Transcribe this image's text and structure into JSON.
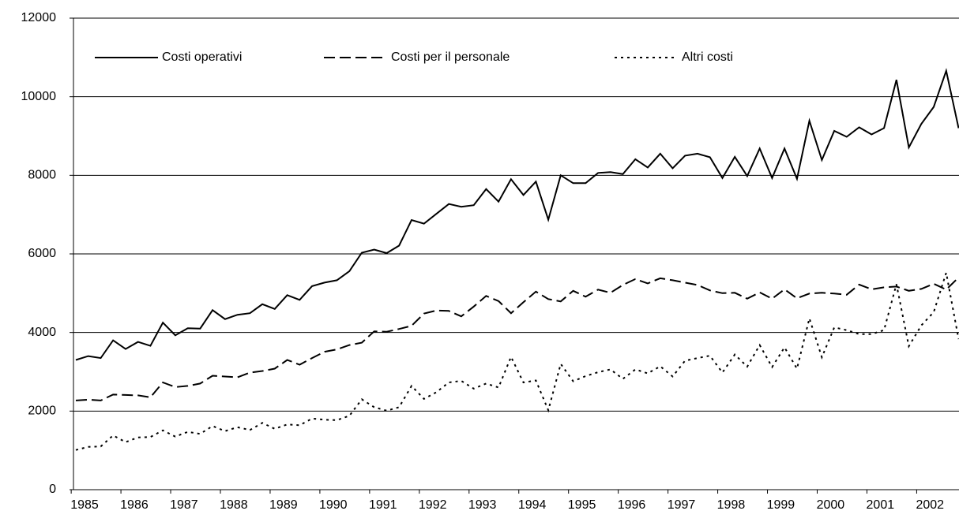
{
  "chart_data": {
    "type": "line",
    "categories": [
      "1985",
      null,
      null,
      null,
      "1986",
      null,
      null,
      null,
      "1987",
      null,
      null,
      null,
      "1988",
      null,
      null,
      null,
      "1989",
      null,
      null,
      null,
      "1990",
      null,
      null,
      null,
      "1991",
      null,
      null,
      null,
      "1992",
      null,
      null,
      null,
      "1993",
      null,
      null,
      null,
      "1994",
      null,
      null,
      null,
      "1995",
      null,
      null,
      null,
      "1996",
      null,
      null,
      null,
      "1997",
      null,
      null,
      null,
      "1998",
      null,
      null,
      null,
      "1999",
      null,
      null,
      null,
      "2000",
      null,
      null,
      null,
      "2001",
      null,
      null,
      null,
      "2002",
      null,
      null,
      null
    ],
    "series": [
      {
        "name": "Costi operativi",
        "color": "#000000",
        "line_style": "solid",
        "values": [
          3300,
          3400,
          3350,
          3800,
          3580,
          3760,
          3660,
          4250,
          3930,
          4110,
          4100,
          4570,
          4340,
          4450,
          4490,
          4720,
          4600,
          4950,
          4830,
          5180,
          5270,
          5330,
          5560,
          6030,
          6110,
          6020,
          6210,
          6860,
          6770,
          7020,
          7270,
          7200,
          7240,
          7650,
          7330,
          7900,
          7500,
          7840,
          6870,
          8000,
          7800,
          7800,
          8060,
          8080,
          8030,
          8410,
          8200,
          8550,
          8180,
          8500,
          8550,
          8460,
          7930,
          8470,
          7980,
          8680,
          7930,
          8680,
          7910,
          9390,
          8390,
          9130,
          8980,
          9220,
          9040,
          9200,
          10430,
          8710,
          9310,
          9740,
          10660,
          9200
        ]
      },
      {
        "name": "Costi per il personale",
        "color": "#000000",
        "line_style": "dashed",
        "values": [
          2270,
          2290,
          2270,
          2420,
          2410,
          2400,
          2350,
          2730,
          2610,
          2640,
          2700,
          2900,
          2880,
          2860,
          2980,
          3020,
          3080,
          3300,
          3180,
          3350,
          3510,
          3570,
          3680,
          3740,
          4030,
          4020,
          4090,
          4170,
          4480,
          4560,
          4550,
          4410,
          4660,
          4930,
          4800,
          4490,
          4770,
          5040,
          4850,
          4790,
          5060,
          4910,
          5090,
          5010,
          5210,
          5360,
          5250,
          5380,
          5330,
          5270,
          5210,
          5070,
          5000,
          5010,
          4860,
          5020,
          4860,
          5100,
          4870,
          4990,
          5010,
          4990,
          4960,
          5220,
          5100,
          5150,
          5170,
          5060,
          5110,
          5240,
          5090,
          5400
        ]
      },
      {
        "name": "Altri costi",
        "color": "#000000",
        "line_style": "dotted",
        "values": [
          1010,
          1090,
          1100,
          1380,
          1210,
          1330,
          1340,
          1510,
          1350,
          1470,
          1420,
          1620,
          1490,
          1590,
          1520,
          1700,
          1550,
          1660,
          1640,
          1810,
          1780,
          1770,
          1880,
          2300,
          2100,
          2010,
          2100,
          2640,
          2310,
          2480,
          2730,
          2770,
          2570,
          2700,
          2600,
          3380,
          2730,
          2780,
          2020,
          3200,
          2760,
          2890,
          2990,
          3060,
          2820,
          3060,
          2960,
          3140,
          2880,
          3280,
          3350,
          3410,
          2980,
          3440,
          3130,
          3680,
          3120,
          3620,
          3080,
          4360,
          3370,
          4130,
          4060,
          3960,
          3960,
          4060,
          5230,
          3650,
          4180,
          4520,
          5520,
          3830
        ]
      }
    ],
    "ylim": [
      0,
      12000
    ],
    "yticks": [
      0,
      2000,
      4000,
      6000,
      8000,
      10000,
      12000
    ],
    "grid": true,
    "legend": "top"
  }
}
